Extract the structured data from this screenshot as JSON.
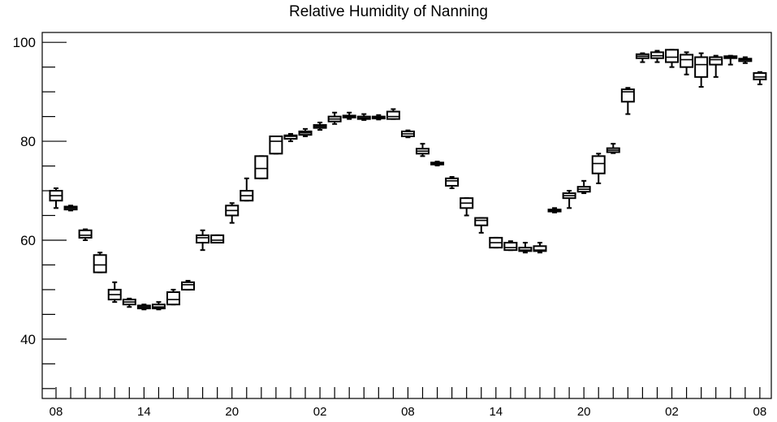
{
  "chart_data": {
    "type": "boxplot",
    "title": "Relative Humidity of Nanning",
    "xlabel": "",
    "ylabel": "",
    "ylim": [
      28,
      102
    ],
    "y_ticks": [
      40,
      60,
      80,
      100
    ],
    "x_tick_labels": [
      "08",
      "14",
      "20",
      "02",
      "08",
      "14",
      "20",
      "02",
      "08"
    ],
    "x_tick_positions": [
      0,
      6,
      12,
      18,
      24,
      30,
      36,
      42,
      48
    ],
    "grid": false,
    "legend": "none",
    "boxes": [
      {
        "x": 0,
        "q1": 68.0,
        "median": 69.0,
        "q3": 70.0,
        "whisker_low": 66.5,
        "whisker_high": 70.5
      },
      {
        "x": 1,
        "q1": 66.2,
        "median": 66.5,
        "q3": 66.8,
        "whisker_low": 66.0,
        "whisker_high": 67.0
      },
      {
        "x": 2,
        "q1": 60.5,
        "median": 61.0,
        "q3": 62.0,
        "whisker_low": 60.0,
        "whisker_high": 62.2
      },
      {
        "x": 3,
        "q1": 53.5,
        "median": 55.0,
        "q3": 57.0,
        "whisker_low": 53.5,
        "whisker_high": 57.5
      },
      {
        "x": 4,
        "q1": 48.0,
        "median": 49.0,
        "q3": 50.0,
        "whisker_low": 47.5,
        "whisker_high": 51.5
      },
      {
        "x": 5,
        "q1": 47.0,
        "median": 47.5,
        "q3": 48.0,
        "whisker_low": 46.5,
        "whisker_high": 48.2
      },
      {
        "x": 6,
        "q1": 46.2,
        "median": 46.5,
        "q3": 46.8,
        "whisker_low": 46.0,
        "whisker_high": 47.0
      },
      {
        "x": 7,
        "q1": 46.2,
        "median": 46.5,
        "q3": 47.0,
        "whisker_low": 46.0,
        "whisker_high": 47.5
      },
      {
        "x": 8,
        "q1": 47.0,
        "median": 48.0,
        "q3": 49.5,
        "whisker_low": 47.0,
        "whisker_high": 50.0
      },
      {
        "x": 9,
        "q1": 50.0,
        "median": 51.0,
        "q3": 51.5,
        "whisker_low": 50.0,
        "whisker_high": 51.8
      },
      {
        "x": 10,
        "q1": 59.5,
        "median": 60.5,
        "q3": 61.0,
        "whisker_low": 58.0,
        "whisker_high": 62.0
      },
      {
        "x": 11,
        "q1": 59.5,
        "median": 60.0,
        "q3": 61.0,
        "whisker_low": 59.5,
        "whisker_high": 61.0
      },
      {
        "x": 12,
        "q1": 65.0,
        "median": 66.0,
        "q3": 67.0,
        "whisker_low": 63.5,
        "whisker_high": 67.5
      },
      {
        "x": 13,
        "q1": 68.0,
        "median": 69.0,
        "q3": 70.0,
        "whisker_low": 68.0,
        "whisker_high": 72.5
      },
      {
        "x": 14,
        "q1": 72.5,
        "median": 74.5,
        "q3": 77.0,
        "whisker_low": 72.5,
        "whisker_high": 77.0
      },
      {
        "x": 15,
        "q1": 77.5,
        "median": 80.0,
        "q3": 81.0,
        "whisker_low": 77.5,
        "whisker_high": 81.0
      },
      {
        "x": 16,
        "q1": 80.5,
        "median": 81.0,
        "q3": 81.2,
        "whisker_low": 80.0,
        "whisker_high": 81.5
      },
      {
        "x": 17,
        "q1": 81.3,
        "median": 81.7,
        "q3": 82.0,
        "whisker_low": 81.0,
        "whisker_high": 82.5
      },
      {
        "x": 18,
        "q1": 82.7,
        "median": 83.0,
        "q3": 83.3,
        "whisker_low": 82.3,
        "whisker_high": 83.8
      },
      {
        "x": 19,
        "q1": 84.0,
        "median": 84.5,
        "q3": 85.0,
        "whisker_low": 83.5,
        "whisker_high": 85.8
      },
      {
        "x": 20,
        "q1": 84.8,
        "median": 85.0,
        "q3": 85.2,
        "whisker_low": 84.5,
        "whisker_high": 85.8
      },
      {
        "x": 21,
        "q1": 84.5,
        "median": 84.7,
        "q3": 85.0,
        "whisker_low": 84.3,
        "whisker_high": 85.5
      },
      {
        "x": 22,
        "q1": 84.6,
        "median": 84.8,
        "q3": 85.0,
        "whisker_low": 84.4,
        "whisker_high": 85.3
      },
      {
        "x": 23,
        "q1": 84.5,
        "median": 85.0,
        "q3": 86.0,
        "whisker_low": 84.5,
        "whisker_high": 86.5
      },
      {
        "x": 24,
        "q1": 81.0,
        "median": 81.5,
        "q3": 82.0,
        "whisker_low": 80.8,
        "whisker_high": 82.2
      },
      {
        "x": 25,
        "q1": 77.5,
        "median": 78.0,
        "q3": 78.5,
        "whisker_low": 77.0,
        "whisker_high": 79.5
      },
      {
        "x": 26,
        "q1": 75.3,
        "median": 75.5,
        "q3": 75.7,
        "whisker_low": 75.1,
        "whisker_high": 75.9
      },
      {
        "x": 27,
        "q1": 71.0,
        "median": 72.0,
        "q3": 72.5,
        "whisker_low": 70.5,
        "whisker_high": 72.8
      },
      {
        "x": 28,
        "q1": 66.5,
        "median": 67.5,
        "q3": 68.5,
        "whisker_low": 65.0,
        "whisker_high": 68.5
      },
      {
        "x": 29,
        "q1": 63.0,
        "median": 64.0,
        "q3": 64.5,
        "whisker_low": 61.5,
        "whisker_high": 64.5
      },
      {
        "x": 30,
        "q1": 58.5,
        "median": 59.5,
        "q3": 60.5,
        "whisker_low": 58.5,
        "whisker_high": 60.5
      },
      {
        "x": 31,
        "q1": 58.0,
        "median": 58.5,
        "q3": 59.5,
        "whisker_low": 58.0,
        "whisker_high": 59.8
      },
      {
        "x": 32,
        "q1": 57.8,
        "median": 58.0,
        "q3": 58.5,
        "whisker_low": 57.5,
        "whisker_high": 59.5
      },
      {
        "x": 33,
        "q1": 57.8,
        "median": 58.0,
        "q3": 58.8,
        "whisker_low": 57.5,
        "whisker_high": 59.5
      },
      {
        "x": 34,
        "q1": 65.8,
        "median": 66.0,
        "q3": 66.2,
        "whisker_low": 65.6,
        "whisker_high": 66.5
      },
      {
        "x": 35,
        "q1": 68.5,
        "median": 69.0,
        "q3": 69.5,
        "whisker_low": 66.5,
        "whisker_high": 70.0
      },
      {
        "x": 36,
        "q1": 69.8,
        "median": 70.3,
        "q3": 70.8,
        "whisker_low": 69.5,
        "whisker_high": 72.0
      },
      {
        "x": 37,
        "q1": 73.5,
        "median": 75.5,
        "q3": 77.0,
        "whisker_low": 71.5,
        "whisker_high": 77.5
      },
      {
        "x": 38,
        "q1": 77.8,
        "median": 78.2,
        "q3": 78.6,
        "whisker_low": 77.6,
        "whisker_high": 79.5
      },
      {
        "x": 39,
        "q1": 88.0,
        "median": 90.0,
        "q3": 90.5,
        "whisker_low": 85.5,
        "whisker_high": 90.8
      },
      {
        "x": 40,
        "q1": 96.8,
        "median": 97.2,
        "q3": 97.6,
        "whisker_low": 96.0,
        "whisker_high": 97.8
      },
      {
        "x": 41,
        "q1": 96.8,
        "median": 97.3,
        "q3": 98.0,
        "whisker_low": 96.0,
        "whisker_high": 98.3
      },
      {
        "x": 42,
        "q1": 96.0,
        "median": 97.0,
        "q3": 98.5,
        "whisker_low": 95.0,
        "whisker_high": 98.5
      },
      {
        "x": 43,
        "q1": 95.0,
        "median": 96.5,
        "q3": 97.5,
        "whisker_low": 93.5,
        "whisker_high": 98.0
      },
      {
        "x": 44,
        "q1": 93.0,
        "median": 95.5,
        "q3": 97.0,
        "whisker_low": 91.0,
        "whisker_high": 97.8
      },
      {
        "x": 45,
        "q1": 95.5,
        "median": 96.5,
        "q3": 97.0,
        "whisker_low": 93.0,
        "whisker_high": 97.3
      },
      {
        "x": 46,
        "q1": 96.8,
        "median": 97.0,
        "q3": 97.2,
        "whisker_low": 95.5,
        "whisker_high": 97.3
      },
      {
        "x": 47,
        "q1": 96.2,
        "median": 96.5,
        "q3": 96.7,
        "whisker_low": 95.8,
        "whisker_high": 97.0
      },
      {
        "x": 48,
        "q1": 92.5,
        "median": 93.0,
        "q3": 93.8,
        "whisker_low": 91.5,
        "whisker_high": 94.0
      }
    ]
  }
}
